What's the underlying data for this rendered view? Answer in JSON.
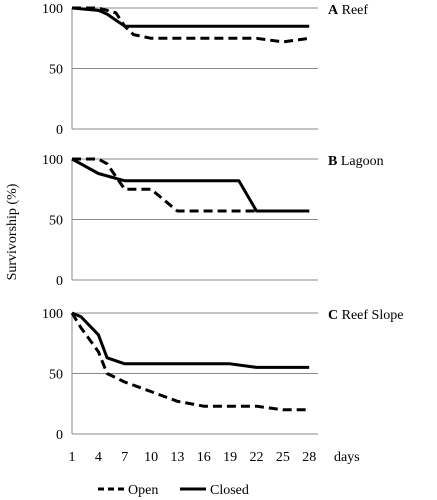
{
  "chart_data": {
    "type": "line",
    "ylabel": "Survivorship (%)",
    "x_ticks": [
      "1",
      "4",
      "7",
      "10",
      "13",
      "16",
      "19",
      "22",
      "25",
      "28"
    ],
    "x_unit_label": "days",
    "legend": [
      {
        "name": "Open",
        "style": "dashed"
      },
      {
        "name": "Closed",
        "style": "solid"
      }
    ],
    "ylim": [
      0,
      100
    ],
    "xlim": [
      1,
      29
    ],
    "panels": [
      {
        "letter": "A",
        "title": "Reef",
        "y_ticks": [
          "100",
          "50",
          "0"
        ],
        "series": [
          {
            "name": "Open",
            "style": "dashed",
            "x": [
              1,
              4,
              6,
              7,
              8,
              10,
              13,
              16,
              19,
              22,
              24,
              25,
              28
            ],
            "y": [
              100,
              100,
              96,
              85,
              78,
              75,
              75,
              75,
              75,
              75,
              73,
              72,
              75
            ]
          },
          {
            "name": "Closed",
            "style": "solid",
            "x": [
              1,
              4,
              5,
              7,
              10,
              13,
              16,
              19,
              22,
              25,
              28
            ],
            "y": [
              100,
              98,
              95,
              85,
              85,
              85,
              85,
              85,
              85,
              85,
              85
            ]
          }
        ]
      },
      {
        "letter": "B",
        "title": "Lagoon",
        "y_ticks": [
          "100",
          "50",
          "0"
        ],
        "series": [
          {
            "name": "Open",
            "style": "dashed",
            "x": [
              1,
              4,
              5,
              7,
              10,
              12,
              13,
              16,
              19,
              22,
              25,
              28
            ],
            "y": [
              100,
              100,
              96,
              75,
              75,
              63,
              57,
              57,
              57,
              57,
              57,
              57
            ]
          },
          {
            "name": "Closed",
            "style": "solid",
            "x": [
              1,
              2,
              4,
              7,
              10,
              13,
              16,
              19,
              20,
              22,
              25,
              28
            ],
            "y": [
              100,
              96,
              88,
              82,
              82,
              82,
              82,
              82,
              82,
              57,
              57,
              57
            ]
          }
        ]
      },
      {
        "letter": "C",
        "title": "Reef Slope",
        "y_ticks": [
          "100",
          "50",
          "0"
        ],
        "series": [
          {
            "name": "Open",
            "style": "dashed",
            "x": [
              1,
              2,
              4,
              5,
              7,
              10,
              13,
              16,
              19,
              22,
              25,
              28
            ],
            "y": [
              100,
              88,
              68,
              50,
              43,
              35,
              27,
              23,
              23,
              23,
              20,
              20
            ]
          },
          {
            "name": "Closed",
            "style": "solid",
            "x": [
              1,
              2,
              4,
              5,
              7,
              10,
              13,
              16,
              19,
              22,
              25,
              28
            ],
            "y": [
              100,
              97,
              82,
              63,
              58,
              58,
              58,
              58,
              58,
              55,
              55,
              55
            ]
          }
        ]
      }
    ]
  }
}
